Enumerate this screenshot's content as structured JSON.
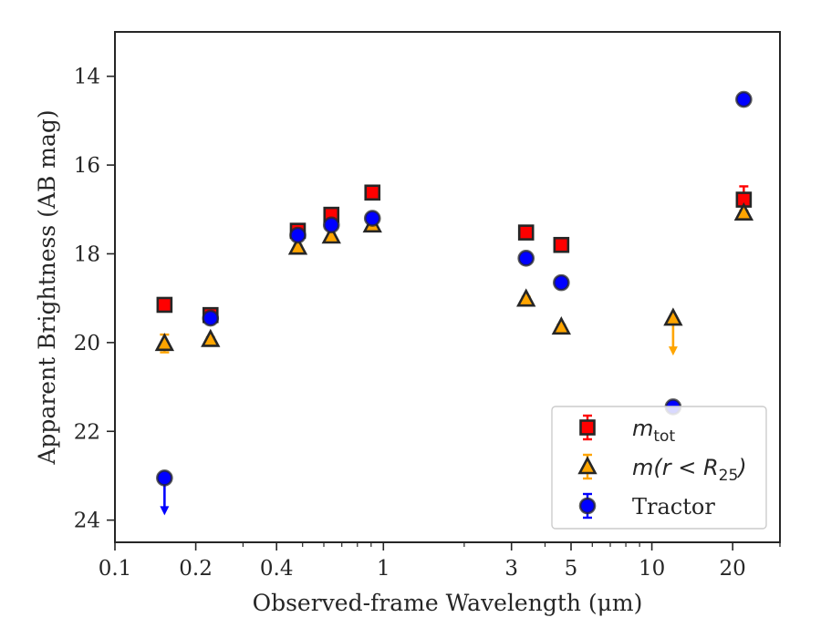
{
  "chart_data": {
    "type": "scatter",
    "title": "",
    "xlabel": "Observed-frame Wavelength (μm)",
    "ylabel": "Apparent Brightness (AB mag)",
    "x_scale": "log",
    "xlim": [
      0.1,
      30
    ],
    "ylim": [
      24.5,
      13
    ],
    "y_inverted": true,
    "x_ticks": [
      {
        "value": 0.1,
        "label": "0.1"
      },
      {
        "value": 0.2,
        "label": "0.2"
      },
      {
        "value": 0.4,
        "label": "0.4"
      },
      {
        "value": 1,
        "label": "1"
      },
      {
        "value": 3,
        "label": "3"
      },
      {
        "value": 5,
        "label": "5"
      },
      {
        "value": 10,
        "label": "10"
      },
      {
        "value": 20,
        "label": "20"
      }
    ],
    "y_ticks": [
      {
        "value": 14,
        "label": "14"
      },
      {
        "value": 16,
        "label": "16"
      },
      {
        "value": 18,
        "label": "18"
      },
      {
        "value": 20,
        "label": "20"
      },
      {
        "value": 22,
        "label": "22"
      },
      {
        "value": 24,
        "label": "24"
      }
    ],
    "grid": false,
    "legend_position": "lower-right",
    "series": [
      {
        "name": "m_tot",
        "legend_main": "m",
        "legend_sub": "tot",
        "legend_rest": "",
        "marker": "square",
        "face_color": "#ff0000",
        "edge_color": "#262626",
        "error_color": "#ff0000",
        "points": [
          {
            "x": 0.153,
            "y": 19.15,
            "err": 0.05
          },
          {
            "x": 0.227,
            "y": 19.38,
            "err": 0.05
          },
          {
            "x": 0.48,
            "y": 17.48,
            "err": 0.05
          },
          {
            "x": 0.64,
            "y": 17.12,
            "err": 0.05
          },
          {
            "x": 0.91,
            "y": 16.62,
            "err": 0.05
          },
          {
            "x": 3.4,
            "y": 17.52,
            "err": 0.05
          },
          {
            "x": 4.6,
            "y": 17.8,
            "err": 0.05
          },
          {
            "x": 22.0,
            "y": 16.78,
            "err": 0.3
          }
        ]
      },
      {
        "name": "m(r < R_25)",
        "legend_main": "m",
        "legend_sub": "25",
        "legend_rest": "(r < R",
        "marker": "triangle",
        "face_color": "#ffa500",
        "edge_color": "#262626",
        "error_color": "#ffa500",
        "points": [
          {
            "x": 0.153,
            "y": 20.02,
            "err": 0.2
          },
          {
            "x": 0.227,
            "y": 19.93,
            "err": 0.05
          },
          {
            "x": 0.48,
            "y": 17.85,
            "err": 0.05
          },
          {
            "x": 0.64,
            "y": 17.6,
            "err": 0.05
          },
          {
            "x": 0.91,
            "y": 17.35,
            "err": 0.05
          },
          {
            "x": 3.4,
            "y": 19.02,
            "err": 0.05
          },
          {
            "x": 4.6,
            "y": 19.65,
            "err": 0.05
          },
          {
            "x": 12.0,
            "y": 19.45,
            "upper_limit": true
          },
          {
            "x": 22.0,
            "y": 17.08,
            "err": 0.05
          }
        ]
      },
      {
        "name": "Tractor",
        "legend_main": "Tractor",
        "legend_sub": "",
        "legend_rest": "",
        "marker": "circle",
        "face_color": "#0000ff",
        "edge_color": "#262626",
        "error_color": "#0000ff",
        "points": [
          {
            "x": 0.153,
            "y": 23.05,
            "upper_limit": true
          },
          {
            "x": 0.227,
            "y": 19.45,
            "err": 0.05
          },
          {
            "x": 0.48,
            "y": 17.58,
            "err": 0.05
          },
          {
            "x": 0.64,
            "y": 17.35,
            "err": 0.05
          },
          {
            "x": 0.91,
            "y": 17.2,
            "err": 0.05
          },
          {
            "x": 3.4,
            "y": 18.1,
            "err": 0.05
          },
          {
            "x": 4.6,
            "y": 18.65,
            "err": 0.05
          },
          {
            "x": 12.0,
            "y": 21.45,
            "err": 0.05
          },
          {
            "x": 22.0,
            "y": 14.52,
            "err": 0.05
          }
        ]
      }
    ]
  }
}
